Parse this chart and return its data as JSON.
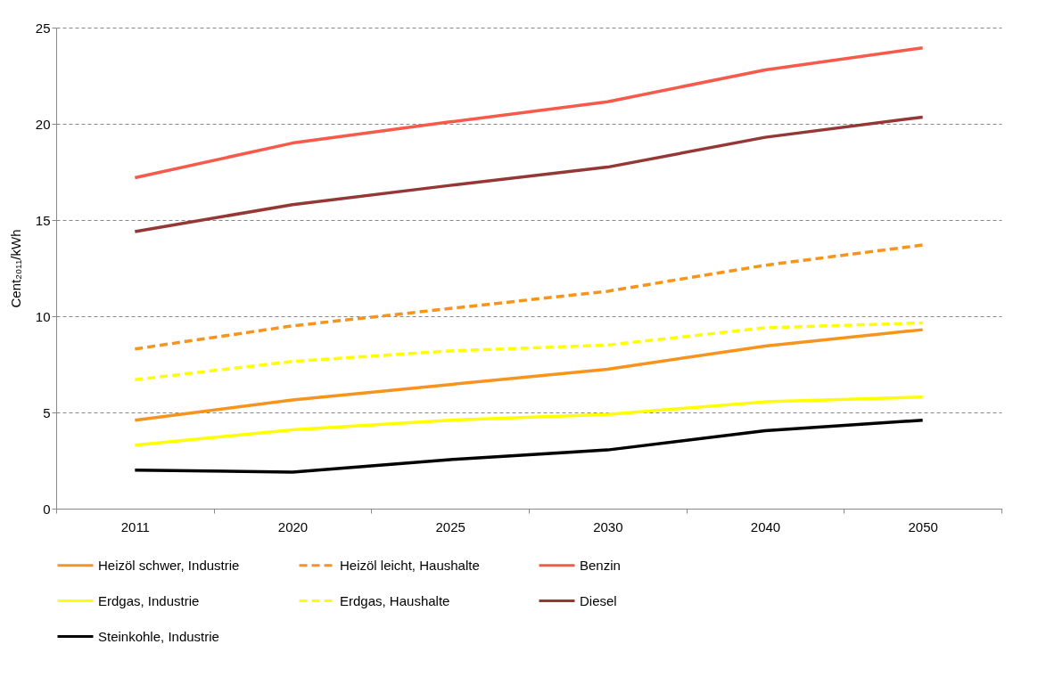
{
  "chart_data": {
    "type": "line",
    "ylabel": "Cent₂₀₁₁/kWh",
    "categories": [
      "2011",
      "2020",
      "2025",
      "2030",
      "2040",
      "2050"
    ],
    "series": [
      {
        "name": "Heizöl schwer, Industrie",
        "color": "#f7941d",
        "line_style": "solid",
        "values": [
          4.6,
          5.65,
          6.45,
          7.25,
          8.45,
          9.3
        ]
      },
      {
        "name": "Heizöl leicht, Haushalte",
        "color": "#f7941d",
        "line_style": "dashed",
        "values": [
          8.3,
          9.5,
          10.4,
          11.3,
          12.65,
          13.7
        ]
      },
      {
        "name": "Benzin",
        "color": "#f55a4a",
        "line_style": "solid",
        "values": [
          17.2,
          19.0,
          20.1,
          21.15,
          22.8,
          23.95
        ]
      },
      {
        "name": "Erdgas, Industrie",
        "color": "#ffff00",
        "line_style": "solid",
        "values": [
          3.3,
          4.1,
          4.6,
          4.9,
          5.55,
          5.8
        ]
      },
      {
        "name": "Erdgas, Haushalte",
        "color": "#ffff00",
        "line_style": "dashed",
        "values": [
          6.7,
          7.65,
          8.2,
          8.5,
          9.4,
          9.65
        ]
      },
      {
        "name": "Diesel",
        "color": "#953735",
        "line_style": "solid",
        "values": [
          14.4,
          15.8,
          16.8,
          17.75,
          19.3,
          20.35
        ]
      },
      {
        "name": "Steinkohle, Industrie",
        "color": "#000000",
        "line_style": "solid",
        "values": [
          2.0,
          1.9,
          2.55,
          3.05,
          4.05,
          4.6
        ]
      }
    ],
    "ylim": [
      0,
      25
    ],
    "yticks": [
      0,
      5,
      10,
      15,
      20,
      25
    ],
    "grid": "y",
    "legend": "bottom",
    "marker": "none"
  }
}
